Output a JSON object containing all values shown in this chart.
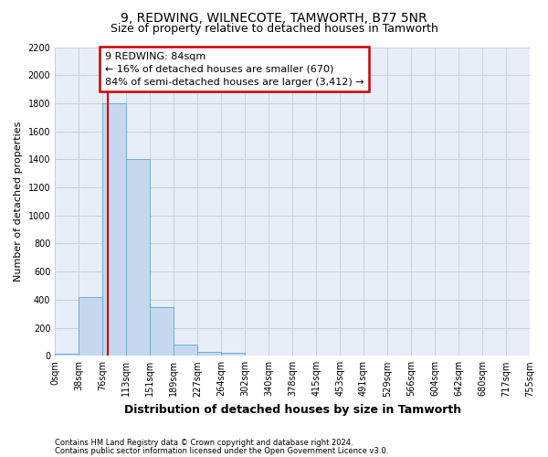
{
  "title": "9, REDWING, WILNECOTE, TAMWORTH, B77 5NR",
  "subtitle": "Size of property relative to detached houses in Tamworth",
  "xlabel": "Distribution of detached houses by size in Tamworth",
  "ylabel": "Number of detached properties",
  "bar_values": [
    15,
    420,
    1800,
    1400,
    350,
    80,
    30,
    20,
    0,
    0,
    0,
    0,
    0,
    0,
    0,
    0,
    0,
    0,
    0,
    0
  ],
  "bin_labels": [
    "0sqm",
    "38sqm",
    "76sqm",
    "113sqm",
    "151sqm",
    "189sqm",
    "227sqm",
    "264sqm",
    "302sqm",
    "340sqm",
    "378sqm",
    "415sqm",
    "453sqm",
    "491sqm",
    "529sqm",
    "566sqm",
    "604sqm",
    "642sqm",
    "680sqm",
    "717sqm",
    "755sqm"
  ],
  "bar_color": "#c5d8f0",
  "bar_edge_color": "#6aaed6",
  "annotation_text": "9 REDWING: 84sqm\n← 16% of detached houses are smaller (670)\n84% of semi-detached houses are larger (3,412) →",
  "annotation_box_color": "#ffffff",
  "annotation_box_edge": "#cc0000",
  "red_line_color": "#cc0000",
  "red_line_x": 2.21,
  "ylim": [
    0,
    2200
  ],
  "yticks": [
    0,
    200,
    400,
    600,
    800,
    1000,
    1200,
    1400,
    1600,
    1800,
    2000,
    2200
  ],
  "grid_color": "#c8d0dc",
  "bg_color": "#e8eef7",
  "footer_line1": "Contains HM Land Registry data © Crown copyright and database right 2024.",
  "footer_line2": "Contains public sector information licensed under the Open Government Licence v3.0.",
  "title_fontsize": 10,
  "subtitle_fontsize": 9,
  "xlabel_fontsize": 9,
  "ylabel_fontsize": 8,
  "tick_fontsize": 7,
  "annot_fontsize": 8
}
